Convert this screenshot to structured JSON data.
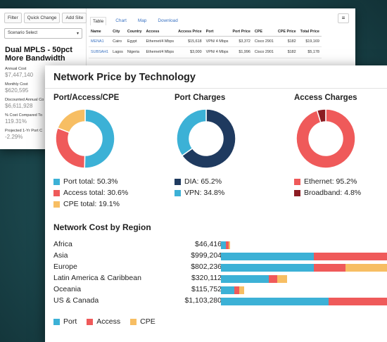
{
  "back_window": {
    "buttons": [
      "Filter",
      "Quick Change",
      "Add Site"
    ],
    "scenario_select": "Scenario Select",
    "scenario_title": "Dual MPLS - 50pct More Bandwidth",
    "metrics": [
      {
        "label": "Annual Cost",
        "value": "$7,447,140"
      },
      {
        "label": "Monthly Cost",
        "value": "$620,595"
      },
      {
        "label": "Discounted Annual Co",
        "value": "$6,611,928"
      },
      {
        "label": "% Cost Compared To",
        "value": "119.31%"
      },
      {
        "label": "Projected 1-Yr Port C",
        "value": "-2.29%"
      }
    ],
    "tabs": [
      "Table",
      "Chart",
      "Map",
      "Download"
    ],
    "table": {
      "headers": [
        "Name",
        "City",
        "Country",
        "Access",
        "Access Price",
        "Port",
        "Port Price",
        "CPE",
        "CPE Price",
        "Total Price"
      ],
      "rows": [
        [
          "MENA1",
          "Cairo",
          "Egypt",
          "Ethernet/4 Mbps",
          "$15,618",
          "VPN/ 4 Mbps",
          "$3,372",
          "Cisco 2901",
          "$182",
          "$19,169"
        ],
        [
          "SUBSAH1",
          "Lagos",
          "Nigeria",
          "Ethernet/4 Mbps",
          "$3,000",
          "VPN/ 4 Mbps",
          "$1,996",
          "Cisco 2901",
          "$182",
          "$5,178"
        ]
      ]
    }
  },
  "front_window": {
    "title": "Network Price by Technology",
    "donuts": [
      {
        "title": "Port/Access/CPE",
        "slices": [
          {
            "label": "Port total: 50.3%",
            "value": 50.3,
            "color": "#3cb1d6"
          },
          {
            "label": "Access total: 30.6%",
            "value": 30.6,
            "color": "#ef5a5a"
          },
          {
            "label": "CPE total: 19.1%",
            "value": 19.1,
            "color": "#f7be63"
          }
        ]
      },
      {
        "title": "Port Charges",
        "slices": [
          {
            "label": "DIA: 65.2%",
            "value": 65.2,
            "color": "#1f3a5f"
          },
          {
            "label": "VPN: 34.8%",
            "value": 34.8,
            "color": "#3cb1d6"
          }
        ]
      },
      {
        "title": "Access Charges",
        "slices": [
          {
            "label": "Ethernet: 95.2%",
            "value": 95.2,
            "color": "#ef5a5a"
          },
          {
            "label": "Broadband: 4.8%",
            "value": 4.8,
            "color": "#8c1c22"
          }
        ]
      }
    ],
    "region_title": "Network Cost by Region",
    "regions": [
      {
        "name": "Africa",
        "total": "$46,416",
        "port": 0.03,
        "access": 0.015,
        "cpe": 0.01
      },
      {
        "name": "Asia",
        "total": "$999,204",
        "port": 0.56,
        "access": 0.47,
        "cpe": 0.0
      },
      {
        "name": "Europe",
        "total": "$802,236",
        "port": 0.56,
        "access": 0.19,
        "cpe": 0.27
      },
      {
        "name": "Latin America & Caribbean",
        "total": "$320,112",
        "port": 0.29,
        "access": 0.05,
        "cpe": 0.06
      },
      {
        "name": "Oceania",
        "total": "$115,752",
        "port": 0.08,
        "access": 0.03,
        "cpe": 0.03
      },
      {
        "name": "US & Canada",
        "total": "$1,103,280",
        "port": 0.65,
        "access": 0.39,
        "cpe": 0.0
      }
    ],
    "legend": [
      {
        "label": "Port",
        "color": "#3cb1d6"
      },
      {
        "label": "Access",
        "color": "#ef5a5a"
      },
      {
        "label": "CPE",
        "color": "#f7be63"
      }
    ]
  }
}
